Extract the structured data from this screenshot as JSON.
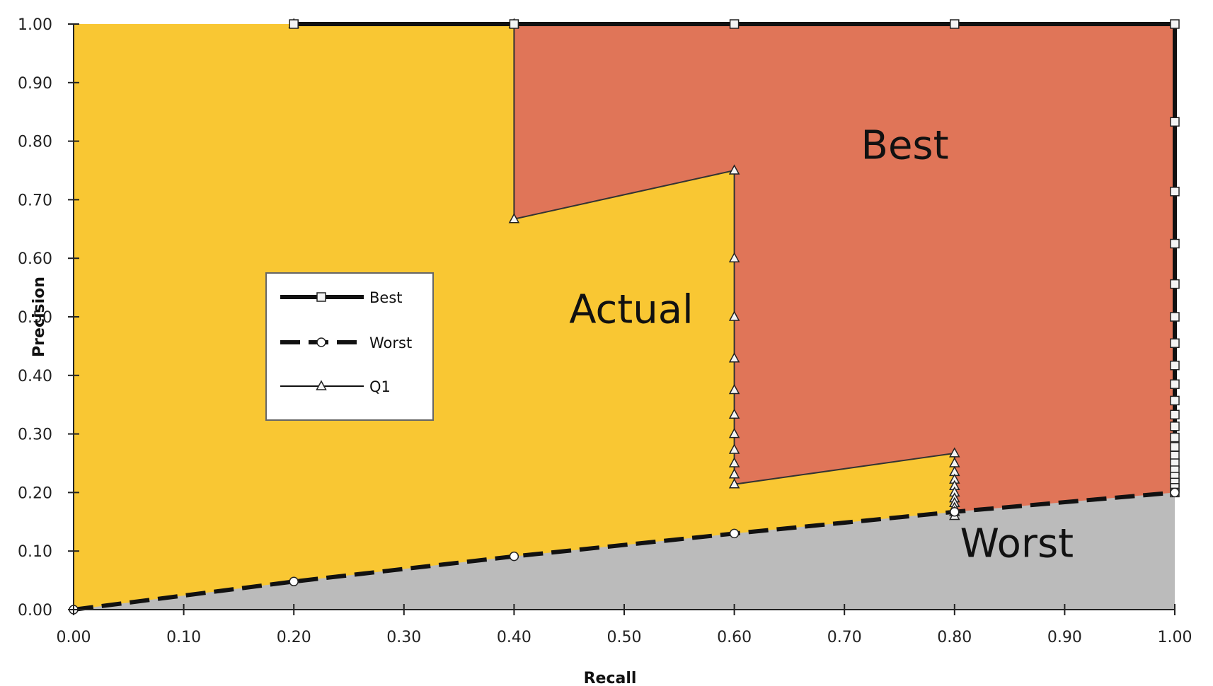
{
  "chart_data": {
    "type": "area",
    "xlabel": "Recall",
    "ylabel": "Precision",
    "xlim": [
      0,
      1
    ],
    "ylim": [
      0,
      1
    ],
    "x_ticks": [
      "0.00",
      "0.10",
      "0.20",
      "0.30",
      "0.40",
      "0.50",
      "0.60",
      "0.70",
      "0.80",
      "0.90",
      "1.00"
    ],
    "y_ticks": [
      "0.00",
      "0.10",
      "0.20",
      "0.30",
      "0.40",
      "0.50",
      "0.60",
      "0.70",
      "0.80",
      "0.90",
      "1.00"
    ],
    "legend_position": "left-center",
    "grid": false,
    "series": [
      {
        "name": "Best",
        "marker": "square",
        "points": [
          [
            0.2,
            1.0
          ],
          [
            0.4,
            1.0
          ],
          [
            0.6,
            1.0
          ],
          [
            0.8,
            1.0
          ],
          [
            1.0,
            1.0
          ],
          [
            1.0,
            0.833
          ],
          [
            1.0,
            0.714
          ],
          [
            1.0,
            0.625
          ],
          [
            1.0,
            0.556
          ],
          [
            1.0,
            0.5
          ],
          [
            1.0,
            0.455
          ],
          [
            1.0,
            0.417
          ],
          [
            1.0,
            0.385
          ],
          [
            1.0,
            0.357
          ],
          [
            1.0,
            0.333
          ],
          [
            1.0,
            0.313
          ],
          [
            1.0,
            0.294
          ],
          [
            1.0,
            0.278
          ],
          [
            1.0,
            0.263
          ],
          [
            1.0,
            0.25
          ],
          [
            1.0,
            0.238
          ],
          [
            1.0,
            0.227
          ],
          [
            1.0,
            0.217
          ],
          [
            1.0,
            0.208
          ],
          [
            1.0,
            0.2
          ]
        ]
      },
      {
        "name": "Worst",
        "marker": "circle",
        "points": [
          [
            0.0,
            0.0
          ],
          [
            0.2,
            0.048
          ],
          [
            0.4,
            0.091
          ],
          [
            0.6,
            0.13
          ],
          [
            0.8,
            0.167
          ],
          [
            1.0,
            0.2
          ]
        ]
      },
      {
        "name": "Q1",
        "marker": "triangle",
        "points": [
          [
            0.2,
            1.0
          ],
          [
            0.4,
            1.0
          ],
          [
            0.4,
            0.667
          ],
          [
            0.6,
            0.75
          ],
          [
            0.6,
            0.6
          ],
          [
            0.6,
            0.5
          ],
          [
            0.6,
            0.429
          ],
          [
            0.6,
            0.375
          ],
          [
            0.6,
            0.333
          ],
          [
            0.6,
            0.3
          ],
          [
            0.6,
            0.273
          ],
          [
            0.6,
            0.25
          ],
          [
            0.6,
            0.231
          ],
          [
            0.6,
            0.214
          ],
          [
            0.8,
            0.267
          ],
          [
            0.8,
            0.25
          ],
          [
            0.8,
            0.235
          ],
          [
            0.8,
            0.222
          ],
          [
            0.8,
            0.211
          ],
          [
            0.8,
            0.2
          ],
          [
            0.8,
            0.19
          ],
          [
            0.8,
            0.182
          ],
          [
            0.8,
            0.174
          ],
          [
            0.8,
            0.167
          ],
          [
            0.8,
            0.16
          ]
        ]
      }
    ],
    "regions": [
      {
        "label": "Best",
        "color": "#e07558",
        "label_at": [
          0.715,
          0.77
        ]
      },
      {
        "label": "Actual",
        "color": "#f9c733",
        "label_at": [
          0.45,
          0.49
        ]
      },
      {
        "label": "Worst",
        "color": "#bbbbbb",
        "label_at": [
          0.805,
          0.09
        ]
      }
    ],
    "colors": {
      "best_region": "#e07558",
      "actual_region": "#f9c733",
      "worst_region": "#bbbbbb",
      "axis": "#222222"
    }
  }
}
